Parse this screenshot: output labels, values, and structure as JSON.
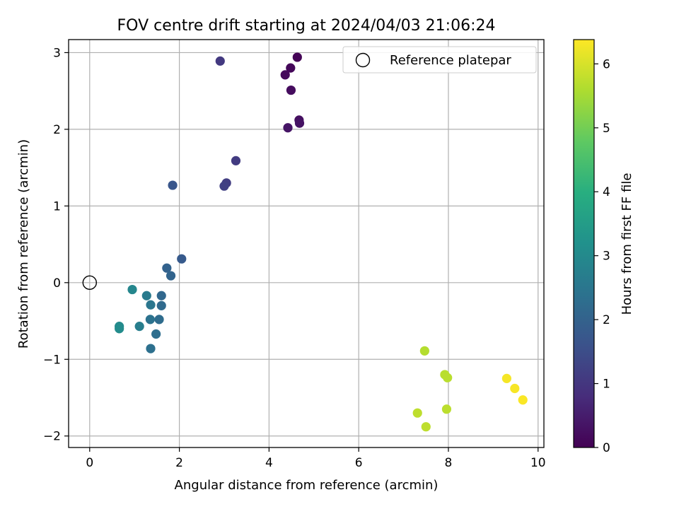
{
  "chart_data": {
    "type": "scatter",
    "title": "FOV centre drift starting at 2024/04/03 21:06:24",
    "xlabel": "Angular distance from reference (arcmin)",
    "ylabel": "Rotation from reference (arcmin)",
    "xlim": [
      -0.47,
      10.13
    ],
    "ylim": [
      -2.15,
      3.17
    ],
    "x_ticks": [
      0,
      2,
      4,
      6,
      8,
      10
    ],
    "y_ticks": [
      -2,
      -1,
      0,
      1,
      2,
      3
    ],
    "grid": true,
    "legend": {
      "position": "top-right",
      "entries": [
        "Reference platepar"
      ]
    },
    "colorbar": {
      "label": "Hours from first FF file",
      "range": [
        0,
        6.38
      ],
      "ticks": [
        0,
        1,
        2,
        3,
        4,
        5,
        6
      ],
      "colormap": "viridis"
    },
    "reference_point": {
      "name": "Reference platepar",
      "x": 0,
      "y": 0
    },
    "points": [
      {
        "x": 4.63,
        "y": 2.94,
        "hours": 0.05
      },
      {
        "x": 4.48,
        "y": 2.8,
        "hours": 0.1
      },
      {
        "x": 4.36,
        "y": 2.71,
        "hours": 0.15
      },
      {
        "x": 4.49,
        "y": 2.51,
        "hours": 0.2
      },
      {
        "x": 4.67,
        "y": 2.12,
        "hours": 0.25
      },
      {
        "x": 4.68,
        "y": 2.08,
        "hours": 0.3
      },
      {
        "x": 4.42,
        "y": 2.02,
        "hours": 0.35
      },
      {
        "x": 2.91,
        "y": 2.89,
        "hours": 1.05
      },
      {
        "x": 3.26,
        "y": 1.59,
        "hours": 1.1
      },
      {
        "x": 3.05,
        "y": 1.3,
        "hours": 1.15
      },
      {
        "x": 3.0,
        "y": 1.26,
        "hours": 1.2
      },
      {
        "x": 1.85,
        "y": 1.27,
        "hours": 1.7
      },
      {
        "x": 2.05,
        "y": 0.31,
        "hours": 1.8
      },
      {
        "x": 1.72,
        "y": 0.19,
        "hours": 2.0
      },
      {
        "x": 1.81,
        "y": 0.09,
        "hours": 2.05
      },
      {
        "x": 1.6,
        "y": -0.17,
        "hours": 2.15
      },
      {
        "x": 1.6,
        "y": -0.3,
        "hours": 2.2
      },
      {
        "x": 1.55,
        "y": -0.48,
        "hours": 2.25
      },
      {
        "x": 1.48,
        "y": -0.67,
        "hours": 2.3
      },
      {
        "x": 1.36,
        "y": -0.86,
        "hours": 2.35
      },
      {
        "x": 1.35,
        "y": -0.48,
        "hours": 2.4
      },
      {
        "x": 1.36,
        "y": -0.29,
        "hours": 2.5
      },
      {
        "x": 1.27,
        "y": -0.17,
        "hours": 2.6
      },
      {
        "x": 1.11,
        "y": -0.57,
        "hours": 2.7
      },
      {
        "x": 0.95,
        "y": -0.09,
        "hours": 2.9
      },
      {
        "x": 0.66,
        "y": -0.57,
        "hours": 3.0
      },
      {
        "x": 0.66,
        "y": -0.6,
        "hours": 3.05
      },
      {
        "x": 7.47,
        "y": -0.89,
        "hours": 5.65
      },
      {
        "x": 7.92,
        "y": -1.2,
        "hours": 5.7
      },
      {
        "x": 7.98,
        "y": -1.24,
        "hours": 5.7
      },
      {
        "x": 7.96,
        "y": -1.65,
        "hours": 5.72
      },
      {
        "x": 7.31,
        "y": -1.7,
        "hours": 5.75
      },
      {
        "x": 7.5,
        "y": -1.88,
        "hours": 5.75
      },
      {
        "x": 9.3,
        "y": -1.25,
        "hours": 6.3
      },
      {
        "x": 9.48,
        "y": -1.38,
        "hours": 6.32
      },
      {
        "x": 9.66,
        "y": -1.53,
        "hours": 6.35
      }
    ]
  }
}
